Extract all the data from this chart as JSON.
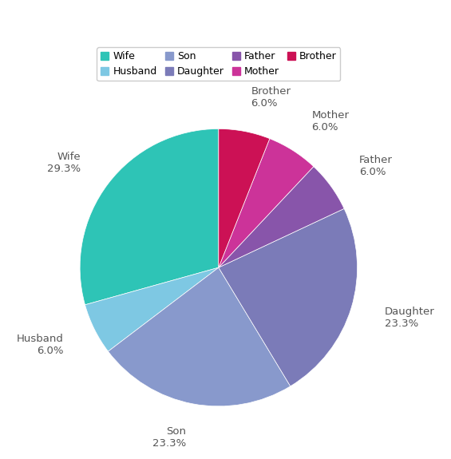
{
  "labels": [
    "Wife",
    "Husband",
    "Son",
    "Daughter",
    "Father",
    "Mother",
    "Brother"
  ],
  "values": [
    29.3,
    6.0,
    23.3,
    23.3,
    6.0,
    6.0,
    6.0
  ],
  "colors": [
    "#2ec4b6",
    "#7ec8e3",
    "#8899cc",
    "#7b7bb8",
    "#8855aa",
    "#cc3399",
    "#cc1155"
  ],
  "startangle": 90,
  "figsize": [
    5.65,
    5.75
  ],
  "dpi": 100,
  "legend_fontsize": 9,
  "label_fontsize": 9.5,
  "label_distance": 1.25
}
